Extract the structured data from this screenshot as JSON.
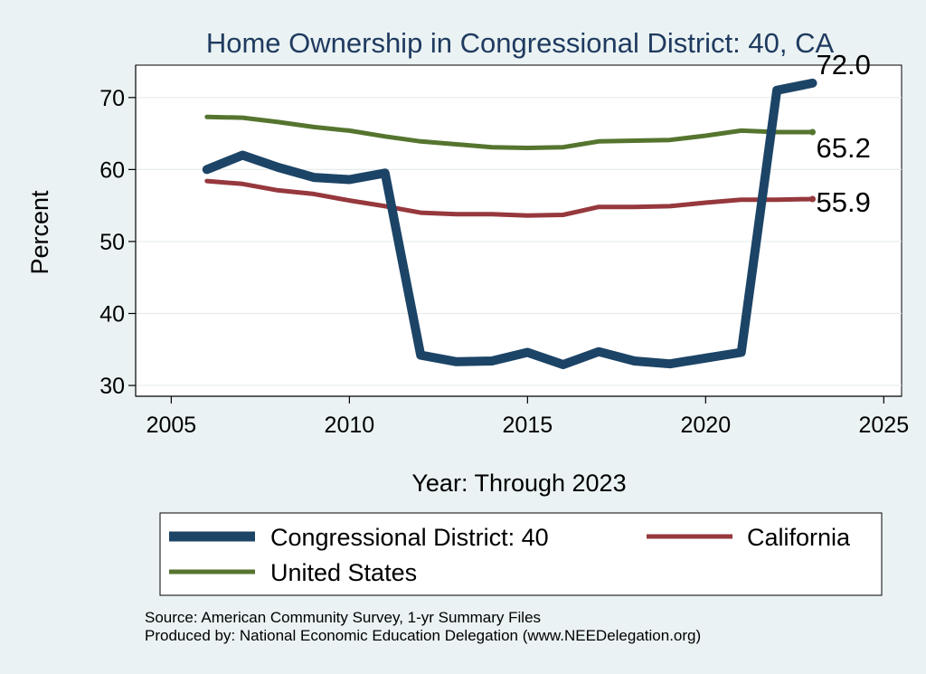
{
  "chart_data": {
    "type": "line",
    "title": "Home Ownership in Congressional District:  40, CA",
    "xlabel": "Year: Through 2023",
    "ylabel": "Percent",
    "xlim": [
      2004,
      2025.5
    ],
    "ylim": [
      28.5,
      74.5
    ],
    "xticks": [
      2005,
      2010,
      2015,
      2020,
      2025
    ],
    "yticks": [
      30,
      40,
      50,
      60,
      70
    ],
    "grid": true,
    "x": [
      2006,
      2007,
      2008,
      2009,
      2010,
      2011,
      2012,
      2013,
      2014,
      2015,
      2016,
      2017,
      2018,
      2019,
      2020,
      2021,
      2022,
      2023
    ],
    "series": [
      {
        "name": "Congressional District:  40",
        "color": "#1c4466",
        "values": [
          60.0,
          62.0,
          60.3,
          58.9,
          58.6,
          59.5,
          34.2,
          33.3,
          33.4,
          34.6,
          32.9,
          34.7,
          33.4,
          33.0,
          33.8,
          34.6,
          71.0,
          72.0
        ],
        "end_label": "72.0"
      },
      {
        "name": "California",
        "color": "#96383d",
        "values": [
          58.4,
          58.0,
          57.1,
          56.6,
          55.7,
          54.9,
          54.0,
          53.8,
          53.8,
          53.6,
          53.7,
          54.8,
          54.8,
          54.9,
          55.4,
          55.8,
          55.8,
          55.9
        ],
        "end_label": "55.9"
      },
      {
        "name": "United States",
        "color": "#55752f",
        "values": [
          67.3,
          67.2,
          66.6,
          65.9,
          65.4,
          64.6,
          63.9,
          63.5,
          63.1,
          63.0,
          63.1,
          63.9,
          64.0,
          64.1,
          64.7,
          65.4,
          65.2,
          65.2
        ],
        "end_label": "65.2"
      }
    ],
    "legend_position": "bottom"
  },
  "source_lines": [
    "Source: American Community Survey, 1-yr Summary Files",
    "Produced by: National Economic Education Delegation (www.NEEDelegation.org)"
  ]
}
